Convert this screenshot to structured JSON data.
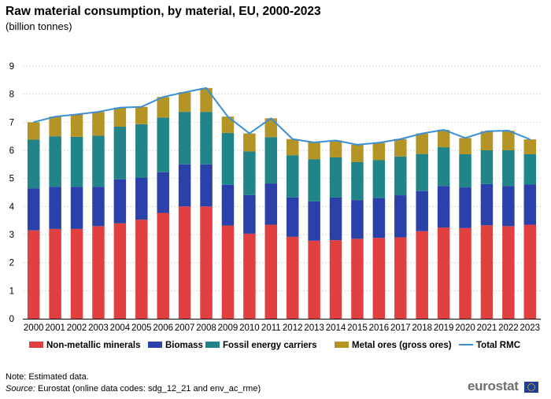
{
  "title": "Raw material consumption, by material, EU, 2000-2023",
  "subtitle": "(billion tonnes)",
  "note": "Note: Estimated data.",
  "source_label": "Source:",
  "source_text": " Eurostat (online data codes: sdg_12_21 and env_ac_rme)",
  "logo_text": "eurostat",
  "chart_data": {
    "type": "bar",
    "stacked": true,
    "title": "Raw material consumption, by material, EU, 2000-2023",
    "ylabel": "billion tonnes",
    "xlabel": "",
    "ylim": [
      0,
      9
    ],
    "yticks": [
      0,
      1,
      2,
      3,
      4,
      5,
      6,
      7,
      8,
      9
    ],
    "grid": true,
    "legend_position": "bottom",
    "categories": [
      "2000",
      "2001",
      "2002",
      "2003",
      "2004",
      "2005",
      "2006",
      "2007",
      "2008",
      "2009",
      "2010",
      "2011",
      "2012",
      "2013",
      "2014",
      "2015",
      "2016",
      "2017",
      "2018",
      "2019",
      "2020",
      "2021",
      "2022",
      "2023"
    ],
    "series": [
      {
        "name": "Non-metallic minerals",
        "color": "#e04040",
        "values": [
          3.15,
          3.2,
          3.2,
          3.3,
          3.4,
          3.53,
          3.77,
          4.0,
          4.0,
          3.32,
          3.03,
          3.35,
          2.92,
          2.78,
          2.8,
          2.85,
          2.88,
          2.9,
          3.12,
          3.25,
          3.23,
          3.33,
          3.3,
          3.35
        ]
      },
      {
        "name": "Biomass",
        "color": "#2941a8",
        "values": [
          1.5,
          1.5,
          1.5,
          1.4,
          1.57,
          1.5,
          1.45,
          1.5,
          1.5,
          1.45,
          1.38,
          1.47,
          1.4,
          1.4,
          1.52,
          1.38,
          1.42,
          1.5,
          1.43,
          1.48,
          1.45,
          1.47,
          1.43,
          1.43
        ]
      },
      {
        "name": "Fossil energy carriers",
        "color": "#208488",
        "values": [
          1.73,
          1.8,
          1.78,
          1.82,
          1.87,
          1.9,
          1.95,
          1.87,
          1.87,
          1.85,
          1.55,
          1.65,
          1.5,
          1.5,
          1.43,
          1.35,
          1.35,
          1.38,
          1.32,
          1.38,
          1.18,
          1.2,
          1.27,
          1.08
        ]
      },
      {
        "name": "Metal ores (gross ores)",
        "color": "#b39424",
        "values": [
          0.62,
          0.7,
          0.8,
          0.85,
          0.68,
          0.62,
          0.73,
          0.7,
          0.85,
          0.58,
          0.64,
          0.67,
          0.58,
          0.6,
          0.6,
          0.62,
          0.62,
          0.62,
          0.73,
          0.62,
          0.58,
          0.68,
          0.7,
          0.53
        ]
      }
    ],
    "line_series": {
      "name": "Total RMC",
      "color": "#3b8fd6",
      "values": [
        7.0,
        7.2,
        7.28,
        7.37,
        7.52,
        7.55,
        7.9,
        8.07,
        8.22,
        7.2,
        6.6,
        7.14,
        6.4,
        6.28,
        6.35,
        6.2,
        6.27,
        6.4,
        6.6,
        6.73,
        6.44,
        6.68,
        6.7,
        6.39
      ]
    }
  }
}
